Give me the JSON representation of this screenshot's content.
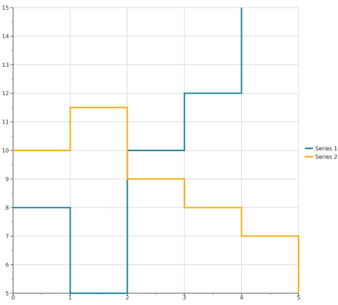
{
  "chart_data": {
    "type": "line",
    "step": true,
    "xlim": [
      0,
      5
    ],
    "ylim": [
      5,
      15
    ],
    "x_ticks": [
      0,
      1,
      2,
      3,
      4,
      5
    ],
    "y_ticks": [
      5,
      6,
      7,
      8,
      9,
      10,
      11,
      12,
      13,
      14,
      15
    ],
    "grid": true,
    "legend": "right",
    "series": [
      {
        "name": "Series 1",
        "color": "#2e8aa3",
        "points": [
          [
            0,
            8
          ],
          [
            1,
            8
          ],
          [
            1,
            5
          ],
          [
            2,
            5
          ],
          [
            2,
            10
          ],
          [
            3,
            10
          ],
          [
            3,
            12
          ],
          [
            4,
            12
          ],
          [
            4,
            15
          ]
        ]
      },
      {
        "name": "Series 2",
        "color": "#f5b31c",
        "points": [
          [
            0,
            10
          ],
          [
            1,
            10
          ],
          [
            1,
            11.5
          ],
          [
            2,
            11.5
          ],
          [
            2,
            9
          ],
          [
            3,
            9
          ],
          [
            3,
            8
          ],
          [
            4,
            8
          ],
          [
            4,
            7
          ],
          [
            5,
            7
          ],
          [
            5,
            5
          ]
        ]
      }
    ]
  }
}
